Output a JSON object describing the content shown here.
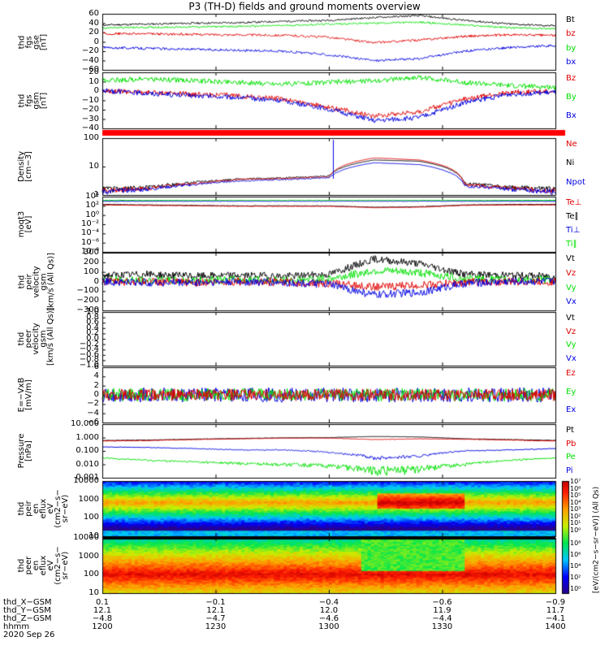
{
  "title": "P3 (TH-D) fields and ground moments overview",
  "colors": {
    "black": "#000000",
    "red": "#e00000",
    "green": "#00e000",
    "blue": "#0000e0"
  },
  "panels": [
    {
      "id": "fgs_dsl",
      "ylabel": [
        "thd",
        "fgs",
        "gse",
        "[nT]"
      ],
      "ticks": [
        "60",
        "40",
        "20",
        "0",
        "−20",
        "−40",
        "−60"
      ],
      "ylim": [
        -60,
        60
      ],
      "legend": [
        "Bt",
        "bz",
        "by",
        "bx"
      ],
      "legend_colors": [
        "black",
        "red",
        "green",
        "blue"
      ]
    },
    {
      "id": "fgs_gsm",
      "ylabel": [
        "thd",
        "fgs",
        "gsm",
        "[nT]"
      ],
      "ticks": [
        "20",
        "10",
        "0",
        "−10",
        "−20",
        "−30",
        "−40"
      ],
      "ylim": [
        -45,
        22
      ],
      "legend": [
        "Bz",
        "By",
        "Bx"
      ],
      "legend_colors": [
        "red",
        "green",
        "blue"
      ]
    },
    {
      "id": "density",
      "ylabel": [
        "Density",
        "[cm−3]"
      ],
      "ticks": [
        "100",
        "10",
        "1"
      ],
      "scale": "log",
      "legend": [
        "Ne",
        "Ni",
        "Npot"
      ],
      "legend_colors": [
        "red",
        "black",
        "blue"
      ]
    },
    {
      "id": "temperature",
      "ylabel": [
        "moqt3",
        "[eV]"
      ],
      "ticks": [
        "10⁴",
        "10²",
        "10⁰",
        "10⁻²",
        "10⁻⁴",
        "10⁻⁶",
        "10⁻⁸"
      ],
      "scale": "log",
      "legend": [
        "Te⊥",
        "Te∥",
        "Ti⊥",
        "Ti∥"
      ],
      "legend_colors": [
        "red",
        "black",
        "blue",
        "green"
      ]
    },
    {
      "id": "peir_velocity",
      "ylabel": [
        "thd",
        "peir",
        "velocity",
        "gsm",
        "[km/s (All Qs)]"
      ],
      "ticks": [
        "300",
        "200",
        "100",
        "0",
        "−100",
        "−200",
        "−300"
      ],
      "ylim": [
        -320,
        320
      ],
      "legend": [
        "Vt",
        "Vz",
        "Vy",
        "Vx"
      ],
      "legend_colors": [
        "black",
        "red",
        "green",
        "blue"
      ]
    },
    {
      "id": "peer_velocity",
      "ylabel": [
        "thd",
        "peer",
        "velocity",
        "gsm",
        "[km/s (All Qs)]"
      ],
      "ticks": [
        "1.0",
        "0.8",
        "0.6",
        "0.4",
        "0.2",
        "0.0",
        "−0.2",
        "−0.4",
        "−0.6",
        "−0.8",
        "−1.0"
      ],
      "ylim": [
        -1,
        1
      ],
      "legend": [
        "Vt",
        "Vz",
        "Vy",
        "Vx"
      ],
      "legend_colors": [
        "black",
        "red",
        "green",
        "blue"
      ]
    },
    {
      "id": "efield",
      "ylabel": [
        "E=−VxB",
        "[mV/m]"
      ],
      "ticks": [
        "6",
        "4",
        "2",
        "0",
        "−2",
        "−4",
        "−6"
      ],
      "ylim": [
        -6,
        6
      ],
      "legend": [
        "Ez",
        "Ey",
        "Ex"
      ],
      "legend_colors": [
        "red",
        "green",
        "blue"
      ]
    },
    {
      "id": "pressure",
      "ylabel": [
        "Pressure",
        "[nPa]"
      ],
      "ticks": [
        "10.000",
        "1.000",
        "0.100",
        "0.010",
        "0.001"
      ],
      "scale": "log",
      "legend": [
        "Pt",
        "Pb",
        "Pe",
        "Pi"
      ],
      "legend_colors": [
        "black",
        "red",
        "green",
        "blue"
      ]
    },
    {
      "id": "peir_spec",
      "ylabel": [
        "thd",
        "peir",
        "en",
        "eflux",
        "eV",
        "(cm2−s−",
        "sr−eV)"
      ],
      "ticks": [
        "10000",
        "1000",
        "100",
        "10"
      ],
      "type": "heatmap"
    },
    {
      "id": "peer_spec",
      "ylabel": [
        "thd",
        "peer",
        "en",
        "eflux",
        "eV",
        "(cm2−s−",
        "sr−eV)"
      ],
      "ticks": [
        "10000",
        "1000",
        "100",
        "10"
      ],
      "type": "heatmap"
    }
  ],
  "colorbar": {
    "label": "[eV/(cm2−s−sr−eV)] (All Qs)",
    "ticks_top": [
      "10⁷",
      "10⁶",
      "10⁵",
      "10⁴",
      "10³",
      "10²",
      "10¹",
      "10⁰"
    ],
    "ticks_bottom": [
      "10⁸",
      "10⁶",
      "10⁴",
      "10²",
      "10⁰"
    ]
  },
  "footer": {
    "row_labels": [
      "thd_X−GSM",
      "thd_Y−GSM",
      "thd_Z−GSM",
      "hhmm",
      "2020 Sep 26"
    ],
    "columns": [
      {
        "x": "0.1",
        "y": "12.1",
        "z": "−4.8",
        "t": "1200"
      },
      {
        "x": "−0.1",
        "y": "12.1",
        "z": "−4.7",
        "t": "1230"
      },
      {
        "x": "−0.4",
        "y": "12.0",
        "z": "−4.6",
        "t": "1300"
      },
      {
        "x": "−0.6",
        "y": "11.9",
        "z": "−4.4",
        "t": "1330"
      },
      {
        "x": "−0.9",
        "y": "11.7",
        "z": "−4.1",
        "t": "1400"
      }
    ]
  },
  "chart_data": {
    "type": "line",
    "title": "P3 (TH-D) fields and ground moments overview",
    "x_time_range": [
      "1200",
      "1400"
    ],
    "x_ticks": [
      "1200",
      "1230",
      "1300",
      "1330",
      "1400"
    ],
    "series": [
      {
        "name": "Bt",
        "panel": "fgs_dsl",
        "values": [
          35,
          37,
          38,
          40,
          42,
          45,
          50,
          55,
          48,
          38
        ]
      },
      {
        "name": "bz",
        "panel": "fgs_dsl",
        "values": [
          18,
          17,
          16,
          15,
          14,
          10,
          0,
          5,
          12,
          15
        ]
      },
      {
        "name": "by",
        "panel": "fgs_dsl",
        "values": [
          30,
          30,
          32,
          33,
          35,
          38,
          40,
          42,
          36,
          30
        ]
      },
      {
        "name": "bx",
        "panel": "fgs_dsl",
        "values": [
          -12,
          -15,
          -16,
          -18,
          -20,
          -30,
          -40,
          -38,
          -20,
          -10
        ]
      },
      {
        "name": "Ne",
        "panel": "density",
        "values": [
          0.4,
          0.5,
          0.8,
          1.2,
          1.5,
          2,
          15,
          10,
          0.8,
          0.5
        ]
      },
      {
        "name": "Vt",
        "panel": "peir_velocity",
        "values": [
          90,
          80,
          70,
          80,
          60,
          90,
          250,
          200,
          80,
          70
        ]
      },
      {
        "name": "Pt",
        "panel": "pressure",
        "values": [
          0.6,
          0.6,
          0.8,
          0.9,
          1.0,
          1.0,
          1.2,
          1.1,
          0.8,
          0.7
        ]
      }
    ]
  }
}
